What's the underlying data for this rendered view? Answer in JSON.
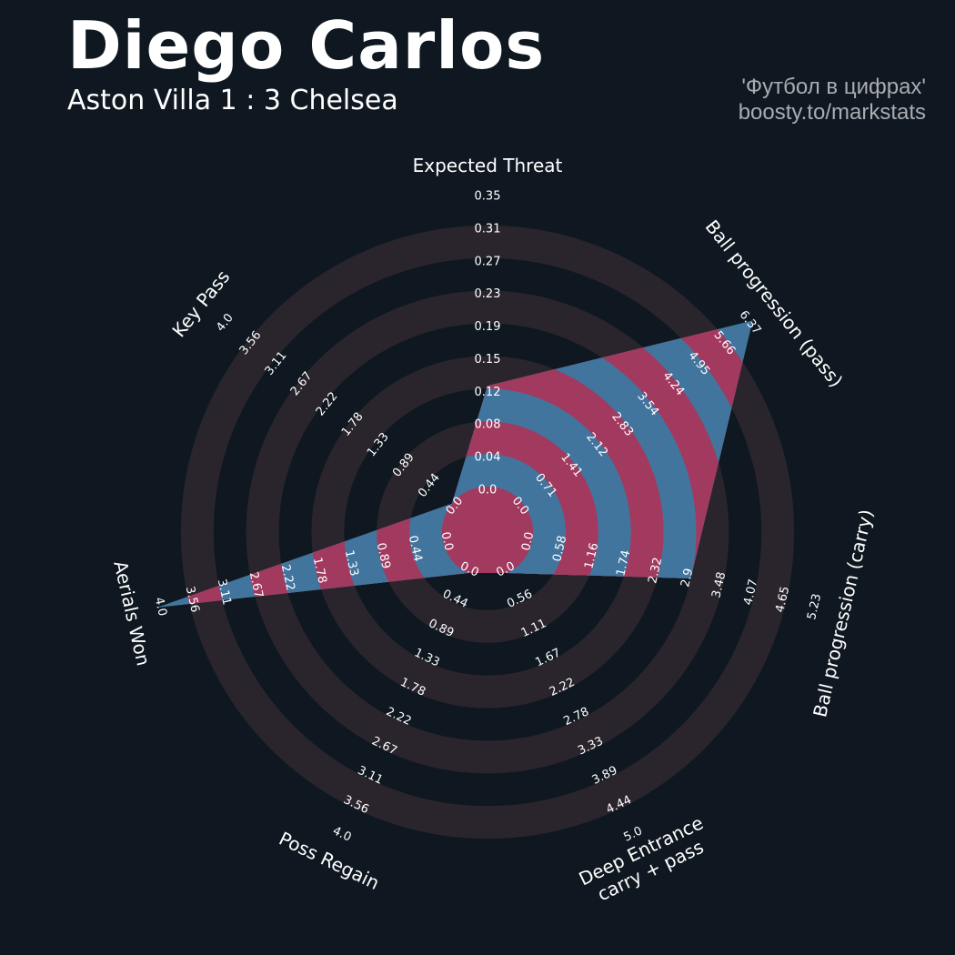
{
  "header": {
    "player": "Diego Carlos",
    "match": "Aston Villa 1 : 3 Chelsea",
    "credit_line1": "'Футбол в цифрах'",
    "credit_line2": "boosty.to/markstats"
  },
  "colors": {
    "background": "#0f1820",
    "ring_band": "#2a252d",
    "fill_blue": "#41759e",
    "fill_red": "#a23a5f",
    "text": "#ffffff"
  },
  "chart_data": {
    "type": "radar",
    "params": [
      {
        "label": "Expected Threat",
        "min": 0.0,
        "max": 0.35,
        "value": 0.12,
        "ticks": [
          "0.0",
          "0.04",
          "0.08",
          "0.12",
          "0.15",
          "0.19",
          "0.23",
          "0.27",
          "0.31",
          "0.35"
        ]
      },
      {
        "label": "Ball progression (pass)",
        "min": 0.0,
        "max": 6.37,
        "value": 6.37,
        "ticks": [
          "0.0",
          "0.71",
          "1.41",
          "2.12",
          "2.83",
          "3.54",
          "4.24",
          "4.95",
          "5.66",
          "6.37"
        ]
      },
      {
        "label": "Ball progression (carry)",
        "min": 0.0,
        "max": 5.23,
        "value": 2.9,
        "ticks": [
          "0.0",
          "0.58",
          "1.16",
          "1.74",
          "2.32",
          "2.9",
          "3.48",
          "4.07",
          "4.65",
          "5.23"
        ]
      },
      {
        "label": "Deep Entrance\ncarry + pass",
        "min": 0.0,
        "max": 5.0,
        "value": 0.0,
        "ticks": [
          "0.0",
          "0.56",
          "1.11",
          "1.67",
          "2.22",
          "2.78",
          "3.33",
          "3.89",
          "4.44",
          "5.0"
        ]
      },
      {
        "label": "Poss Regain",
        "min": 0.0,
        "max": 4.0,
        "value": 0.0,
        "ticks": [
          "0.0",
          "0.44",
          "0.89",
          "1.33",
          "1.78",
          "2.22",
          "2.67",
          "3.11",
          "3.56",
          "4.0"
        ]
      },
      {
        "label": "Aerials Won",
        "min": 0.0,
        "max": 4.0,
        "value": 4.0,
        "ticks": [
          "0.0",
          "0.44",
          "0.89",
          "1.33",
          "1.78",
          "2.22",
          "2.67",
          "3.11",
          "3.56",
          "4.0"
        ]
      },
      {
        "label": "Key Pass",
        "min": 0.0,
        "max": 4.0,
        "value": 0.0,
        "ticks": [
          "0.0",
          "0.44",
          "0.89",
          "1.33",
          "1.78",
          "2.22",
          "2.67",
          "3.11",
          "3.56",
          "4.0"
        ]
      }
    ]
  }
}
